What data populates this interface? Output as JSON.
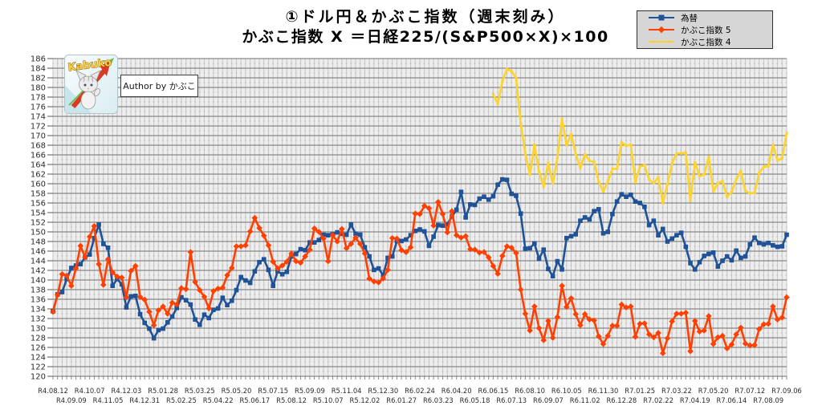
{
  "title": {
    "line1": "①ドル円＆かぶこ指数（週末刻み）",
    "line2": "かぶこ指数 X ＝日経225/(S&P500×X)×100"
  },
  "logo": {
    "brand": "Kabuko",
    "author_label": "Author by かぶこ"
  },
  "legend": {
    "items": [
      {
        "label": "為替",
        "color": "#1F5296",
        "marker": "square"
      },
      {
        "label": "かぶこ指数 5",
        "color": "#FF4000",
        "marker": "diamond"
      },
      {
        "label": "かぶこ指数 4",
        "color": "#FFD42A",
        "marker": "none"
      }
    ]
  },
  "chart_data": {
    "type": "line",
    "title": "①ドル円＆かぶこ指数（週末刻み） かぶこ指数 X ＝日経225/(S&P500×X)×100",
    "xlabel": "",
    "ylabel": "",
    "ylim": [
      120,
      186
    ],
    "y_tick_step": 2,
    "y_ticks": [
      120,
      122,
      124,
      126,
      128,
      130,
      132,
      134,
      136,
      138,
      140,
      142,
      144,
      146,
      148,
      150,
      152,
      154,
      156,
      158,
      160,
      162,
      164,
      166,
      168,
      170,
      172,
      174,
      176,
      178,
      180,
      182,
      184,
      186
    ],
    "grid": true,
    "legend_position": "top-right",
    "n_points": 161,
    "points_per_x_label": 4,
    "x_tick_labels": [
      "R4.08.12",
      "R4.09.09",
      "R4.10.07",
      "R4.11.05",
      "R4.12.03",
      "R4.12.31",
      "R5.01.28",
      "R5.02.25",
      "R5.03.25",
      "R5.04.22",
      "R5.05.20",
      "R5.06.17",
      "R5.07.15",
      "R5.08.12",
      "R5.09.09",
      "R5.10.07",
      "R5.11.04",
      "R5.12.02",
      "R5.12.30",
      "R6.01.27",
      "R6.02.24",
      "R6.03.23",
      "R6.04.20",
      "R6.05.18",
      "R6.06.15",
      "R6.07.13",
      "R6.08.10",
      "R6.09.07",
      "R6.10.05",
      "R6.11.02",
      "R6.11.30",
      "R6.12.28",
      "R7.01.25",
      "R7.02.22",
      "R7.03.22",
      "R7.04.19",
      "R7.05.20",
      "R7.06.14",
      "R7.07.12",
      "R7.08.09",
      "R7.09.06"
    ],
    "series": [
      {
        "name": "為替",
        "color": "#1F5296",
        "marker": "square",
        "values": [
          133.5,
          137.0,
          137.5,
          140.2,
          142.5,
          143.0,
          143.3,
          144.7,
          145.3,
          148.7,
          151.5,
          147.5,
          146.7,
          138.8,
          140.2,
          139.1,
          134.3,
          136.6,
          136.7,
          132.9,
          131.1,
          129.9,
          127.9,
          129.6,
          129.9,
          131.2,
          132.4,
          134.2,
          136.4,
          135.8,
          134.9,
          131.8,
          130.7,
          132.8,
          132.1,
          133.8,
          134.1,
          136.3,
          134.8,
          135.7,
          137.9,
          140.6,
          139.9,
          139.4,
          141.8,
          143.7,
          144.3,
          142.1,
          138.8,
          141.8,
          141.2,
          141.7,
          144.9,
          145.4,
          146.4,
          146.2,
          147.8,
          147.8,
          148.3,
          149.4,
          149.3,
          149.5,
          149.9,
          149.6,
          149.4,
          151.5,
          149.6,
          149.4,
          146.8,
          144.9,
          142.1,
          142.4,
          141.0,
          144.6,
          144.9,
          148.1,
          148.1,
          148.4,
          149.3,
          150.2,
          150.5,
          150.1,
          147.1,
          149.0,
          151.4,
          151.3,
          151.6,
          153.2,
          154.6,
          158.3,
          153.0,
          155.7,
          155.6,
          156.9,
          157.3,
          156.7,
          157.4,
          159.8,
          160.9,
          160.8,
          157.9,
          157.5,
          153.8,
          146.5,
          146.6,
          147.6,
          144.4,
          146.3,
          142.3,
          140.8,
          143.9,
          142.2,
          148.7,
          149.1,
          149.5,
          152.3,
          153.0,
          152.6,
          154.3,
          154.7,
          149.7,
          150.0,
          153.7,
          156.3,
          157.8,
          157.3,
          157.7,
          156.3,
          156.0,
          155.2,
          151.4,
          152.3,
          149.3,
          150.6,
          148.0,
          148.6,
          149.3,
          149.8,
          146.9,
          143.5,
          142.2,
          143.7,
          145.0,
          145.4,
          145.7,
          142.8,
          144.0,
          144.9,
          144.1,
          146.1,
          144.6,
          144.9,
          147.4,
          148.8,
          147.7,
          147.4,
          147.7,
          147.2,
          146.9,
          147.0,
          149.4
        ]
      },
      {
        "name": "かぶこ指数 5",
        "color": "#FF4000",
        "marker": "diamond",
        "values": [
          133.4,
          136.9,
          141.2,
          140.9,
          138.8,
          142.4,
          147.1,
          144.7,
          149.0,
          151.2,
          143.3,
          139.0,
          144.3,
          141.6,
          140.7,
          140.5,
          136.4,
          141.9,
          142.9,
          136.5,
          135.9,
          133.4,
          130.6,
          133.7,
          134.5,
          133.0,
          135.3,
          134.9,
          138.3,
          138.1,
          145.8,
          139.6,
          137.9,
          136.5,
          134.1,
          137.7,
          138.2,
          138.4,
          141.0,
          142.5,
          147.0,
          147.0,
          147.2,
          150.1,
          152.9,
          150.8,
          149.2,
          147.2,
          143.8,
          142.4,
          143.0,
          143.8,
          145.5,
          143.9,
          143.6,
          144.9,
          146.3,
          150.7,
          150.0,
          148.6,
          143.9,
          149.3,
          148.0,
          150.6,
          146.6,
          147.5,
          148.8,
          147.5,
          145.5,
          140.3,
          139.7,
          139.5,
          140.3,
          142.1,
          148.7,
          148.6,
          146.2,
          145.8,
          146.8,
          153.8,
          153.7,
          155.4,
          154.9,
          151.3,
          156.2,
          153.7,
          149.9,
          154.3,
          149.3,
          148.8,
          149.1,
          146.4,
          146.3,
          145.7,
          145.8,
          144.7,
          142.9,
          141.3,
          145.0,
          147.0,
          146.7,
          145.6,
          138.0,
          133.0,
          129.5,
          134.5,
          130.0,
          127.5,
          131.5,
          128.0,
          132.3,
          138.8,
          134.4,
          136.2,
          132.9,
          130.6,
          132.9,
          131.8,
          131.6,
          128.3,
          126.7,
          128.4,
          130.5,
          130.5,
          134.9,
          134.3,
          134.5,
          128.2,
          130.9,
          131.0,
          128.7,
          128.1,
          129.0,
          124.8,
          127.9,
          131.4,
          133.0,
          133.0,
          133.2,
          125.2,
          131.5,
          129.3,
          129.5,
          132.5,
          126.7,
          128.1,
          128.4,
          125.8,
          126.6,
          128.7,
          130.1,
          126.8,
          126.4,
          126.5,
          129.8,
          130.8,
          130.9,
          134.5,
          131.8,
          132.2,
          136.4
        ]
      },
      {
        "name": "かぶこ指数 4",
        "color": "#FFD42A",
        "marker": "small-square",
        "values": [
          null,
          null,
          null,
          null,
          null,
          null,
          null,
          null,
          null,
          null,
          null,
          null,
          null,
          null,
          null,
          null,
          null,
          null,
          null,
          null,
          null,
          null,
          null,
          null,
          null,
          null,
          null,
          null,
          null,
          null,
          null,
          null,
          null,
          null,
          null,
          null,
          null,
          null,
          null,
          null,
          null,
          null,
          null,
          null,
          null,
          null,
          null,
          null,
          null,
          null,
          null,
          null,
          null,
          null,
          null,
          null,
          null,
          null,
          null,
          null,
          null,
          null,
          null,
          null,
          null,
          null,
          null,
          null,
          null,
          null,
          null,
          null,
          null,
          null,
          null,
          null,
          null,
          null,
          null,
          null,
          null,
          null,
          null,
          null,
          null,
          null,
          null,
          null,
          null,
          null,
          null,
          null,
          null,
          null,
          null,
          null,
          178.6,
          176.6,
          181.3,
          183.8,
          183.4,
          182.0,
          172.5,
          166.3,
          161.9,
          168.1,
          162.5,
          159.4,
          164.4,
          160.0,
          165.4,
          173.5,
          168.0,
          170.3,
          166.1,
          163.3,
          166.1,
          164.8,
          164.5,
          160.4,
          158.4,
          160.5,
          163.1,
          163.1,
          168.6,
          167.9,
          168.1,
          160.3,
          163.6,
          163.8,
          160.9,
          160.1,
          161.3,
          156.0,
          159.9,
          164.3,
          166.3,
          166.3,
          166.5,
          156.5,
          164.4,
          161.6,
          161.9,
          165.6,
          158.4,
          160.1,
          160.5,
          157.3,
          158.3,
          160.9,
          162.6,
          158.5,
          158.0,
          158.1,
          162.3,
          163.5,
          163.6,
          168.1,
          164.8,
          165.3,
          170.5
        ]
      }
    ]
  },
  "colors": {
    "plot_bg": "#ededed",
    "grid_major": "#6f6f6f",
    "grid_minor_v": "#c6c6c6",
    "grid_minor_h": "#bdbdbd",
    "axis_text": "#2b2b2b",
    "legend_bg": "#d6d6d6"
  }
}
